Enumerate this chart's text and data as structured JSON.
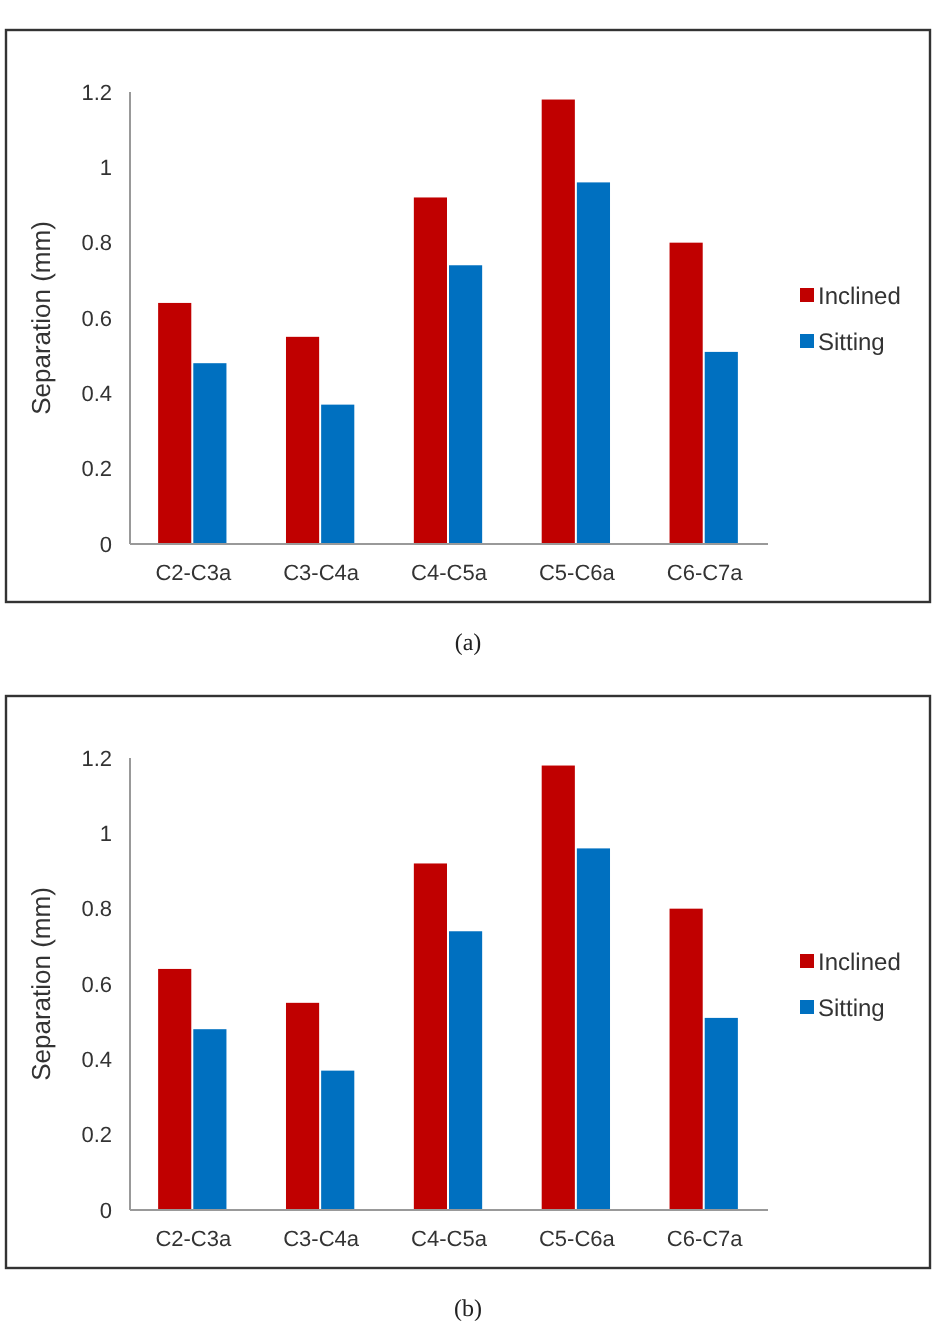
{
  "chart_data": [
    {
      "type": "bar",
      "categories": [
        "C2-C3a",
        "C3-C4a",
        "C4-C5a",
        "C5-C6a",
        "C6-C7a"
      ],
      "ylabel": "Separation (mm)",
      "ylim": [
        0,
        1.2
      ],
      "yticks": [
        0,
        0.2,
        0.4,
        0.6,
        0.8,
        1,
        1.2
      ],
      "grid": false,
      "legend": "right",
      "annotations": [
        "(a)"
      ],
      "series": [
        {
          "name": "Inclined",
          "color": "#c00000",
          "values": [
            0.64,
            0.55,
            0.92,
            1.18,
            0.8
          ]
        },
        {
          "name": "Sitting",
          "color": "#0070c0",
          "values": [
            0.48,
            0.37,
            0.74,
            0.96,
            0.51
          ]
        }
      ]
    },
    {
      "type": "bar",
      "categories": [
        "C2-C3a",
        "C3-C4a",
        "C4-C5a",
        "C5-C6a",
        "C6-C7a"
      ],
      "ylabel": "Separation (mm)",
      "ylim": [
        0,
        1.2
      ],
      "yticks": [
        0,
        0.2,
        0.4,
        0.6,
        0.8,
        1,
        1.2
      ],
      "grid": false,
      "legend": "right",
      "annotations": [
        "(b)"
      ],
      "series": [
        {
          "name": "Inclined",
          "color": "#c00000",
          "values": [
            0.64,
            0.55,
            0.92,
            1.18,
            0.8
          ]
        },
        {
          "name": "Sitting",
          "color": "#0070c0",
          "values": [
            0.48,
            0.37,
            0.74,
            0.96,
            0.51
          ]
        }
      ]
    }
  ]
}
